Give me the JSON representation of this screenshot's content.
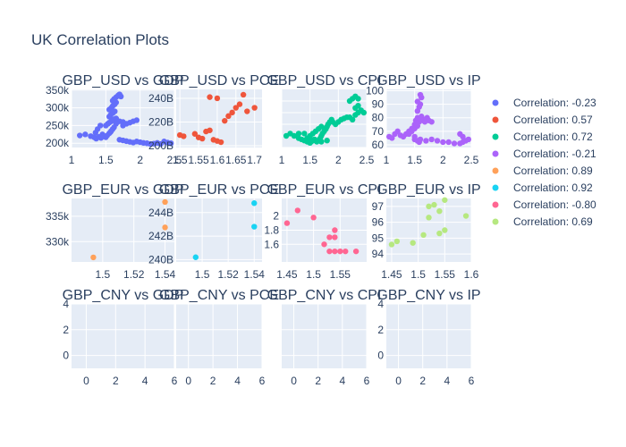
{
  "title": "UK Correlation Plots",
  "legend": [
    {
      "label": "Correlation: -0.23",
      "color": "#636efa"
    },
    {
      "label": "Correlation: 0.57",
      "color": "#EF553B"
    },
    {
      "label": "Correlation: 0.72",
      "color": "#00cc96"
    },
    {
      "label": "Correlation: -0.21",
      "color": "#ab63fa"
    },
    {
      "label": "Correlation: 0.89",
      "color": "#FFA15A"
    },
    {
      "label": "Correlation: 0.92",
      "color": "#19d3f3"
    },
    {
      "label": "Correlation: -0.80",
      "color": "#FF6692"
    },
    {
      "label": "Correlation: 0.69",
      "color": "#B6E880"
    }
  ],
  "chart_data": [
    {
      "type": "scatter",
      "title": "GBP_USD vs GDP",
      "xlim": [
        1,
        2.5
      ],
      "ylim": [
        188000,
        352000
      ],
      "xticks": [
        {
          "v": 1,
          "l": "1"
        },
        {
          "v": 1.5,
          "l": "1.5"
        },
        {
          "v": 2,
          "l": "2"
        },
        {
          "v": 2.5,
          "l": "2.5"
        }
      ],
      "yticks": [
        {
          "v": 200000,
          "l": "200k"
        },
        {
          "v": 250000,
          "l": "250k"
        },
        {
          "v": 300000,
          "l": "300k"
        },
        {
          "v": 350000,
          "l": "350k"
        }
      ],
      "color": "#636efa",
      "x": [
        1.12,
        1.2,
        1.28,
        1.33,
        1.36,
        1.4,
        1.43,
        1.45,
        1.47,
        1.5,
        1.52,
        1.55,
        1.57,
        1.58,
        1.6,
        1.62,
        1.5,
        1.53,
        1.55,
        1.58,
        1.6,
        1.62,
        1.65,
        1.55,
        1.57,
        1.6,
        1.63,
        1.55,
        1.58,
        1.6,
        1.63,
        1.65,
        1.7,
        1.75,
        1.8,
        1.85,
        1.9,
        1.95,
        1.7,
        1.75,
        1.8,
        1.85,
        1.9,
        1.6,
        1.62,
        1.65,
        1.68,
        1.7,
        1.72,
        1.65,
        1.75,
        1.95,
        2.0,
        2.05,
        2.1,
        2.15,
        2.2,
        2.25,
        2.35,
        2.4,
        2.45,
        2.3,
        1.35,
        1.38,
        1.42
      ],
      "y": [
        222000,
        225000,
        220000,
        217000,
        213000,
        218000,
        215000,
        225000,
        220000,
        217000,
        222000,
        228000,
        232000,
        235000,
        240000,
        245000,
        250000,
        255000,
        258000,
        262000,
        265000,
        268000,
        270000,
        275000,
        280000,
        285000,
        290000,
        295000,
        300000,
        305000,
        310000,
        315000,
        262000,
        260000,
        255000,
        258000,
        262000,
        265000,
        210000,
        208000,
        206000,
        204000,
        202000,
        320000,
        325000,
        330000,
        335000,
        338000,
        332000,
        255000,
        250000,
        205000,
        203000,
        201000,
        200000,
        198000,
        199000,
        201000,
        205000,
        202000,
        200000,
        198000,
        230000,
        240000,
        250000
      ]
    },
    {
      "type": "scatter",
      "title": "GBP_USD vs PCE",
      "xlim": [
        1.49,
        1.72
      ],
      "ylim": [
        198500000000,
        247500000000
      ],
      "xticks": [
        {
          "v": 1.5,
          "l": "1.5"
        },
        {
          "v": 1.55,
          "l": "1.55"
        },
        {
          "v": 1.6,
          "l": "1.6"
        },
        {
          "v": 1.65,
          "l": "1.65"
        },
        {
          "v": 1.7,
          "l": "1.7"
        }
      ],
      "yticks": [
        {
          "v": 200000000000,
          "l": "200B"
        },
        {
          "v": 220000000000,
          "l": "220B"
        },
        {
          "v": 240000000000,
          "l": "240B"
        }
      ],
      "color": "#EF553B",
      "x": [
        1.5,
        1.51,
        1.54,
        1.55,
        1.56,
        1.57,
        1.58,
        1.59,
        1.6,
        1.61,
        1.62,
        1.63,
        1.64,
        1.65,
        1.66,
        1.67,
        1.68,
        1.7,
        1.58,
        1.6
      ],
      "y": [
        209000000000,
        208000000000,
        210000000000,
        207000000000,
        206000000000,
        212000000000,
        213000000000,
        205000000000,
        204000000000,
        203000000000,
        221000000000,
        225000000000,
        228000000000,
        232000000000,
        235000000000,
        243000000000,
        229000000000,
        232000000000,
        241000000000,
        240000000000
      ]
    },
    {
      "type": "scatter",
      "title": "GBP_USD vs CPI",
      "xlim": [
        1,
        2.5
      ],
      "ylim": [
        0,
        25
      ],
      "xticks": [
        {
          "v": 1,
          "l": "1"
        },
        {
          "v": 1.5,
          "l": "1.5"
        },
        {
          "v": 2,
          "l": "2"
        },
        {
          "v": 2.5,
          "l": "2.5"
        }
      ],
      "yticks": [
        {
          "v": 0,
          "l": ""
        },
        {
          "v": 5,
          "l": ""
        },
        {
          "v": 10,
          "l": ""
        },
        {
          "v": 15,
          "l": ""
        },
        {
          "v": 20,
          "l": ""
        }
      ],
      "color": "#00cc96",
      "x": [
        1.08,
        1.15,
        1.22,
        1.3,
        1.35,
        1.4,
        1.45,
        1.5,
        1.52,
        1.55,
        1.58,
        1.6,
        1.62,
        1.65,
        1.68,
        1.7,
        1.72,
        1.75,
        1.78,
        1.8,
        1.82,
        1.85,
        1.88,
        1.9,
        1.95,
        2.0,
        2.05,
        2.1,
        2.15,
        2.2,
        2.25,
        2.3,
        2.35,
        2.4,
        2.2,
        2.25,
        2.3,
        2.35,
        1.45,
        1.5,
        1.55,
        1.6,
        1.65,
        1.7,
        1.4,
        1.5,
        1.6,
        1.7,
        1.8,
        1.3,
        2.3,
        2.35,
        2.4,
        2.45
      ],
      "y": [
        5,
        6,
        5,
        4,
        3.5,
        3,
        2.5,
        2,
        2.5,
        3,
        3.5,
        3,
        2.5,
        3,
        4,
        5,
        6,
        7,
        8,
        9,
        10,
        11,
        12,
        11,
        10,
        11,
        12,
        12.5,
        13,
        13,
        12,
        14,
        15,
        16,
        20,
        21,
        22,
        21,
        4,
        5,
        6,
        7,
        8,
        9,
        6,
        4,
        3,
        2.5,
        3,
        6,
        17,
        18,
        16,
        15
      ]
    },
    {
      "type": "scatter",
      "title": "GBP_USD vs IP",
      "xlim": [
        1,
        2.5
      ],
      "ylim": [
        58,
        101
      ],
      "xticks": [
        {
          "v": 1,
          "l": "1"
        },
        {
          "v": 1.5,
          "l": "1.5"
        },
        {
          "v": 2,
          "l": "2"
        },
        {
          "v": 2.5,
          "l": "2.5"
        }
      ],
      "yticks": [
        {
          "v": 60,
          "l": "60"
        },
        {
          "v": 70,
          "l": "70"
        },
        {
          "v": 80,
          "l": "80"
        },
        {
          "v": 90,
          "l": "90"
        },
        {
          "v": 100,
          "l": "100"
        }
      ],
      "color": "#ab63fa",
      "x": [
        1.05,
        1.1,
        1.15,
        1.2,
        1.25,
        1.3,
        1.35,
        1.4,
        1.45,
        1.5,
        1.52,
        1.55,
        1.58,
        1.6,
        1.62,
        1.65,
        1.68,
        1.7,
        1.72,
        1.75,
        1.8,
        1.55,
        1.58,
        1.6,
        1.62,
        1.55,
        1.6,
        1.5,
        1.55,
        1.58,
        1.6,
        1.7,
        1.8,
        1.9,
        2.0,
        2.1,
        2.2,
        2.3,
        2.35,
        2.4,
        2.45,
        2.3,
        2.35,
        1.45,
        1.5,
        1.55,
        1.4,
        1.5
      ],
      "y": [
        66,
        65,
        68,
        70,
        67,
        66,
        68,
        70,
        72,
        75,
        78,
        80,
        77,
        79,
        81,
        78,
        77,
        79,
        80,
        78,
        77,
        85,
        88,
        90,
        95,
        92,
        97,
        64,
        63,
        62,
        64,
        63,
        64,
        63,
        62,
        62,
        61,
        61,
        62,
        63,
        64,
        68,
        66,
        70,
        72,
        74,
        68,
        66
      ]
    },
    {
      "type": "scatter",
      "title": "GBP_EUR vs GDP",
      "xlim": [
        1.48,
        1.546
      ],
      "ylim": [
        326000,
        338500
      ],
      "xticks": [
        {
          "v": 1.5,
          "l": "1.5"
        },
        {
          "v": 1.52,
          "l": "1.52"
        },
        {
          "v": 1.54,
          "l": "1.54"
        }
      ],
      "yticks": [
        {
          "v": 330000,
          "l": "330k"
        },
        {
          "v": 335000,
          "l": "335k"
        }
      ],
      "color": "#FFA15A",
      "x": [
        1.494,
        1.54,
        1.54
      ],
      "y": [
        326900,
        332800,
        337800
      ]
    },
    {
      "type": "scatter",
      "title": "GBP_EUR vs PCE",
      "xlim": [
        1.48,
        1.546
      ],
      "ylim": [
        239800000000,
        245200000000
      ],
      "xticks": [
        {
          "v": 1.5,
          "l": "1.5"
        },
        {
          "v": 1.52,
          "l": "1.52"
        },
        {
          "v": 1.54,
          "l": "1.54"
        }
      ],
      "yticks": [
        {
          "v": 240000000000,
          "l": "240B"
        },
        {
          "v": 242000000000,
          "l": "242B"
        },
        {
          "v": 244000000000,
          "l": "244B"
        }
      ],
      "color": "#19d3f3",
      "x": [
        1.495,
        1.54,
        1.54
      ],
      "y": [
        240200000000,
        242800000000,
        244800000000
      ]
    },
    {
      "type": "scatter",
      "title": "GBP_EUR vs CPI",
      "xlim": [
        1.44,
        1.6
      ],
      "ylim": [
        1.35,
        2.25
      ],
      "xticks": [
        {
          "v": 1.45,
          "l": "1.45"
        },
        {
          "v": 1.5,
          "l": "1.5"
        },
        {
          "v": 1.55,
          "l": "1.55"
        }
      ],
      "yticks": [
        {
          "v": 1.6,
          "l": "1.6"
        },
        {
          "v": 1.8,
          "l": "1.8"
        },
        {
          "v": 2,
          "l": "2"
        }
      ],
      "color": "#FF6692",
      "x": [
        1.45,
        1.47,
        1.5,
        1.52,
        1.53,
        1.54,
        1.54,
        1.53,
        1.55,
        1.54,
        1.56,
        1.58
      ],
      "y": [
        1.9,
        2.08,
        1.98,
        1.6,
        1.7,
        1.8,
        1.7,
        1.5,
        1.5,
        1.5,
        1.5,
        1.5
      ]
    },
    {
      "type": "scatter",
      "title": "GBP_EUR vs IP",
      "xlim": [
        1.44,
        1.6
      ],
      "ylim": [
        93.5,
        97.5
      ],
      "xticks": [
        {
          "v": 1.45,
          "l": "1.45"
        },
        {
          "v": 1.5,
          "l": "1.5"
        },
        {
          "v": 1.55,
          "l": "1.55"
        },
        {
          "v": 1.6,
          "l": "1.6"
        }
      ],
      "yticks": [
        {
          "v": 94,
          "l": "94"
        },
        {
          "v": 95,
          "l": "95"
        },
        {
          "v": 96,
          "l": "96"
        },
        {
          "v": 97,
          "l": "97"
        }
      ],
      "color": "#B6E880",
      "x": [
        1.45,
        1.46,
        1.49,
        1.51,
        1.52,
        1.52,
        1.53,
        1.54,
        1.54,
        1.55,
        1.55,
        1.59
      ],
      "y": [
        94.6,
        94.8,
        94.7,
        95.2,
        97,
        96.3,
        97.1,
        95.3,
        96.7,
        95.5,
        97.4,
        96.4
      ]
    },
    {
      "type": "scatter",
      "title": "GBP_CNY vs GDP",
      "xlim": [
        -1,
        6
      ],
      "ylim": [
        -1,
        4
      ],
      "xticks": [
        {
          "v": 0,
          "l": "0"
        },
        {
          "v": 2,
          "l": "2"
        },
        {
          "v": 4,
          "l": "4"
        },
        {
          "v": 6,
          "l": "6"
        }
      ],
      "yticks": [
        {
          "v": 0,
          "l": "0"
        },
        {
          "v": 2,
          "l": "2"
        },
        {
          "v": 4,
          "l": "4"
        }
      ],
      "color": "#636efa",
      "x": [],
      "y": []
    },
    {
      "type": "scatter",
      "title": "GBP_CNY vs PCE",
      "xlim": [
        -1,
        6
      ],
      "ylim": [
        -1,
        4
      ],
      "xticks": [
        {
          "v": 0,
          "l": "0"
        },
        {
          "v": 2,
          "l": "2"
        },
        {
          "v": 4,
          "l": "4"
        },
        {
          "v": 6,
          "l": "6"
        }
      ],
      "yticks": [
        {
          "v": 0,
          "l": ""
        },
        {
          "v": 2,
          "l": ""
        },
        {
          "v": 4,
          "l": ""
        }
      ],
      "color": "#636efa",
      "x": [],
      "y": []
    },
    {
      "type": "scatter",
      "title": "GBP_CNY vs CPI",
      "xlim": [
        -1,
        6
      ],
      "ylim": [
        -1,
        4
      ],
      "xticks": [
        {
          "v": 0,
          "l": "0"
        },
        {
          "v": 2,
          "l": "2"
        },
        {
          "v": 4,
          "l": "4"
        },
        {
          "v": 6,
          "l": "6"
        }
      ],
      "yticks": [
        {
          "v": 0,
          "l": ""
        },
        {
          "v": 2,
          "l": ""
        },
        {
          "v": 4,
          "l": ""
        }
      ],
      "color": "#636efa",
      "x": [],
      "y": []
    },
    {
      "type": "scatter",
      "title": "GBP_CNY vs IP",
      "xlim": [
        -1,
        6
      ],
      "ylim": [
        -1,
        4
      ],
      "xticks": [
        {
          "v": 0,
          "l": "0"
        },
        {
          "v": 2,
          "l": "2"
        },
        {
          "v": 4,
          "l": "4"
        },
        {
          "v": 6,
          "l": "6"
        }
      ],
      "yticks": [
        {
          "v": 0,
          "l": "0"
        },
        {
          "v": 2,
          "l": "2"
        },
        {
          "v": 4,
          "l": "4"
        }
      ],
      "color": "#636efa",
      "x": [],
      "y": []
    }
  ]
}
